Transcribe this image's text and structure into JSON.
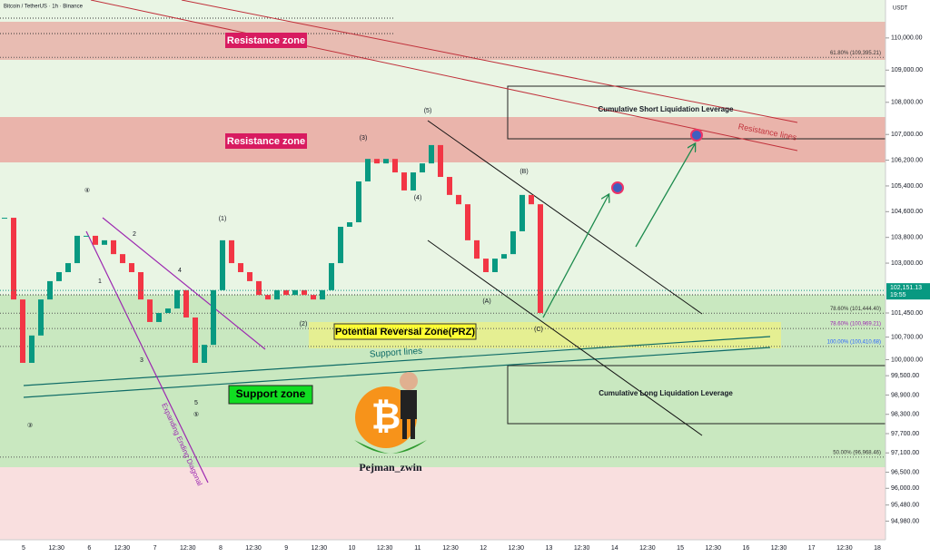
{
  "header": {
    "symbol": "Bitcoin / TetherUS · 1h · Binance",
    "currency": "USDT"
  },
  "chart_data": {
    "type": "candlestick",
    "x_labels": [
      "5",
      "12:30",
      "6",
      "12:30",
      "7",
      "12:30",
      "8",
      "12:30",
      "9",
      "12:30",
      "10",
      "12:30",
      "11",
      "12:30",
      "12",
      "12:30",
      "13",
      "12:30",
      "14",
      "12:30",
      "15",
      "12:30",
      "16",
      "12:30",
      "17",
      "12:30",
      "18"
    ],
    "closes": [
      104410,
      101870,
      99900,
      100750,
      101870,
      102440,
      102720,
      103000,
      103850,
      103850,
      103570,
      103710,
      103280,
      103000,
      102720,
      101870,
      101170,
      101450,
      101590,
      102160,
      101310,
      99900,
      100460,
      102160,
      103710,
      103000,
      102720,
      102440,
      102010,
      101870,
      102160,
      102010,
      102160,
      102010,
      101870,
      102160,
      103000,
      104130,
      104270,
      105540,
      106240,
      106100,
      106240,
      105820,
      105260,
      105820,
      106100,
      106670,
      105680,
      105120,
      104830,
      103710,
      103140,
      102720,
      103140,
      103280,
      103990,
      105120,
      104830,
      101450
    ],
    "up_color": "#089981",
    "down_color": "#f23645",
    "ylim": [
      94400,
      111180
    ],
    "yticks": [
      {
        "value": 110000,
        "label": "110,000.00"
      },
      {
        "value": 109000,
        "label": "109,000.00"
      },
      {
        "value": 108000,
        "label": "108,000.00"
      },
      {
        "value": 107000,
        "label": "107,000.00"
      },
      {
        "value": 106200,
        "label": "106,200.00"
      },
      {
        "value": 105400,
        "label": "105,400.00"
      },
      {
        "value": 104600,
        "label": "104,600.00"
      },
      {
        "value": 103800,
        "label": "103,800.00"
      },
      {
        "value": 103000,
        "label": "103,000.00"
      },
      {
        "value": 101450,
        "label": "101,450.00"
      },
      {
        "value": 100700,
        "label": "100,700.00"
      },
      {
        "value": 100000,
        "label": "100,000.00"
      },
      {
        "value": 99500,
        "label": "99,500.00"
      },
      {
        "value": 98900,
        "label": "98,900.00"
      },
      {
        "value": 98300,
        "label": "98,300.00"
      },
      {
        "value": 97700,
        "label": "97,700.00"
      },
      {
        "value": 97100,
        "label": "97,100.00"
      },
      {
        "value": 96500,
        "label": "96,500.00"
      },
      {
        "value": 96000,
        "label": "96,000.00"
      },
      {
        "value": 95480,
        "label": "95,480.00"
      },
      {
        "value": 94980,
        "label": "94,980.00"
      }
    ],
    "last_price": 102151.13,
    "last_price_label": "102,151.13",
    "last_time": "19:55",
    "fib_levels": [
      {
        "value": 109395.21,
        "label": "61.80% (109,395.21)"
      },
      {
        "value": 101444.4,
        "label": "78.60% (101,444.40)"
      },
      {
        "value": 100969.21,
        "label": "78.60% (100,969.21)"
      },
      {
        "value": 100410.68,
        "label": "100.00% (100,410.68)"
      },
      {
        "value": 96968.46,
        "label": "50.00% (96,968.46)"
      }
    ],
    "annotations": {
      "resistance_top": "Resistance zone",
      "resistance_mid": "Resistance zone",
      "support_zone": "Support zone",
      "prz": "Potential Reversal Zone(PRZ)",
      "support_lines": "Support lines",
      "resistance_lines": "Resistance lines",
      "short_liq": "Cumulative Short Liquidation Leverage",
      "long_liq": "Cumulative Long Liquidation Leverage",
      "diagonal": "Expanding Ending Diagonal",
      "author": "Pejman_zwin",
      "logo_symbol": "₿"
    },
    "wave_labels": [
      "(1)",
      "(2)",
      "(3)",
      "(4)",
      "(5)",
      "(A)",
      "(B)",
      "(C)",
      "1",
      "2",
      "3",
      "4",
      "5",
      "③",
      "④",
      "⑤"
    ]
  }
}
